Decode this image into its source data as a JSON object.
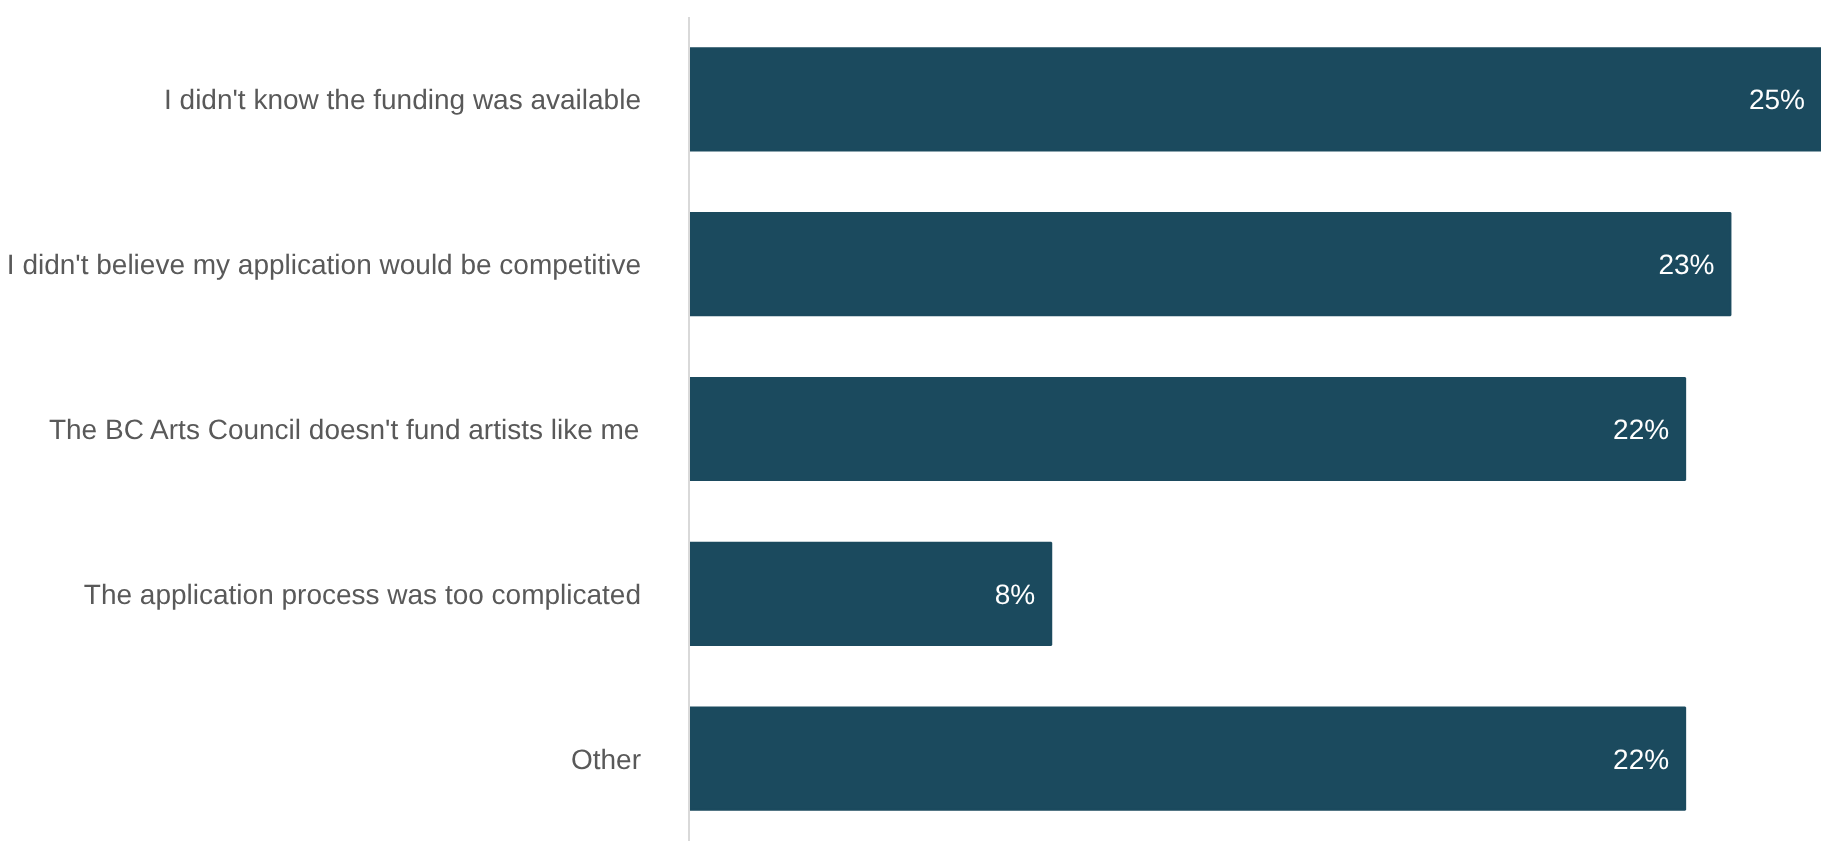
{
  "chart_data": {
    "type": "bar",
    "orientation": "horizontal",
    "categories": [
      "I didn't know the funding was available",
      "I didn't believe my application would be competitive",
      "The BC Arts Council doesn't fund artists like me",
      "The application process was too complicated",
      "Other"
    ],
    "values": [
      25,
      23,
      22,
      8,
      22
    ],
    "value_labels": [
      "25%",
      "23%",
      "22%",
      "8%",
      "22%"
    ],
    "color": "#1b4a5e"
  }
}
